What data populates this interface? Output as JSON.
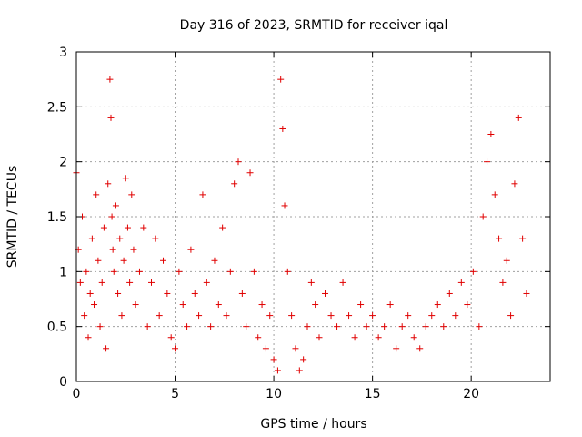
{
  "chart_data": {
    "type": "scatter",
    "title": "Day 316 of 2023, SRMTID for receiver iqal",
    "xlabel": "GPS time / hours",
    "ylabel": "SRMTID / TECUs",
    "xlim": [
      0,
      24
    ],
    "ylim": [
      0,
      3
    ],
    "xticks": [
      0,
      5,
      10,
      15,
      20
    ],
    "xtick_labels": [
      "0",
      "5",
      "10",
      "15",
      "20"
    ],
    "yticks": [
      0,
      0.5,
      1,
      1.5,
      2,
      2.5,
      3
    ],
    "ytick_labels": [
      "0",
      "0.5",
      "1",
      "1.5",
      "2",
      "2.5",
      "3"
    ],
    "grid": true,
    "marker": "+",
    "color": "#e00000",
    "series": [
      {
        "name": "SRMTID",
        "x": [
          0.0,
          0.1,
          0.2,
          0.3,
          0.4,
          0.5,
          0.6,
          0.7,
          0.8,
          0.9,
          1.0,
          1.1,
          1.2,
          1.3,
          1.4,
          1.5,
          1.6,
          1.7,
          1.75,
          1.8,
          1.85,
          1.9,
          2.0,
          2.1,
          2.2,
          2.3,
          2.4,
          2.5,
          2.6,
          2.7,
          2.8,
          2.9,
          3.0,
          3.2,
          3.4,
          3.6,
          3.8,
          4.0,
          4.2,
          4.4,
          4.6,
          4.8,
          5.0,
          5.2,
          5.4,
          5.6,
          5.8,
          6.0,
          6.2,
          6.4,
          6.6,
          6.8,
          7.0,
          7.2,
          7.4,
          7.6,
          7.8,
          8.0,
          8.2,
          8.4,
          8.6,
          8.8,
          9.0,
          9.2,
          9.4,
          9.6,
          9.8,
          10.0,
          10.2,
          10.35,
          10.45,
          10.55,
          10.7,
          10.9,
          11.1,
          11.3,
          11.5,
          11.7,
          11.9,
          12.1,
          12.3,
          12.6,
          12.9,
          13.2,
          13.5,
          13.8,
          14.1,
          14.4,
          14.7,
          15.0,
          15.3,
          15.6,
          15.9,
          16.2,
          16.5,
          16.8,
          17.1,
          17.4,
          17.7,
          18.0,
          18.3,
          18.6,
          18.9,
          19.2,
          19.5,
          19.8,
          20.1,
          20.4,
          20.6,
          20.8,
          21.0,
          21.2,
          21.4,
          21.6,
          21.8,
          22.0,
          22.2,
          22.4,
          22.6,
          22.8
        ],
        "y": [
          1.9,
          1.2,
          0.9,
          1.5,
          0.6,
          1.0,
          0.4,
          0.8,
          1.3,
          0.7,
          1.7,
          1.1,
          0.5,
          0.9,
          1.4,
          0.3,
          1.8,
          2.75,
          2.4,
          1.5,
          1.2,
          1.0,
          1.6,
          0.8,
          1.3,
          0.6,
          1.1,
          1.85,
          1.4,
          0.9,
          1.7,
          1.2,
          0.7,
          1.0,
          1.4,
          0.5,
          0.9,
          1.3,
          0.6,
          1.1,
          0.8,
          0.4,
          0.3,
          1.0,
          0.7,
          0.5,
          1.2,
          0.8,
          0.6,
          1.7,
          0.9,
          0.5,
          1.1,
          0.7,
          1.4,
          0.6,
          1.0,
          1.8,
          2.0,
          0.8,
          0.5,
          1.9,
          1.0,
          0.4,
          0.7,
          0.3,
          0.6,
          0.2,
          0.1,
          2.75,
          2.3,
          1.6,
          1.0,
          0.6,
          0.3,
          0.1,
          0.2,
          0.5,
          0.9,
          0.7,
          0.4,
          0.8,
          0.6,
          0.5,
          0.9,
          0.6,
          0.4,
          0.7,
          0.5,
          0.6,
          0.4,
          0.5,
          0.7,
          0.3,
          0.5,
          0.6,
          0.4,
          0.3,
          0.5,
          0.6,
          0.7,
          0.5,
          0.8,
          0.6,
          0.9,
          0.7,
          1.0,
          0.5,
          1.5,
          2.0,
          2.25,
          1.7,
          1.3,
          0.9,
          1.1,
          0.6,
          1.8,
          2.4,
          1.3,
          0.8
        ]
      }
    ]
  }
}
